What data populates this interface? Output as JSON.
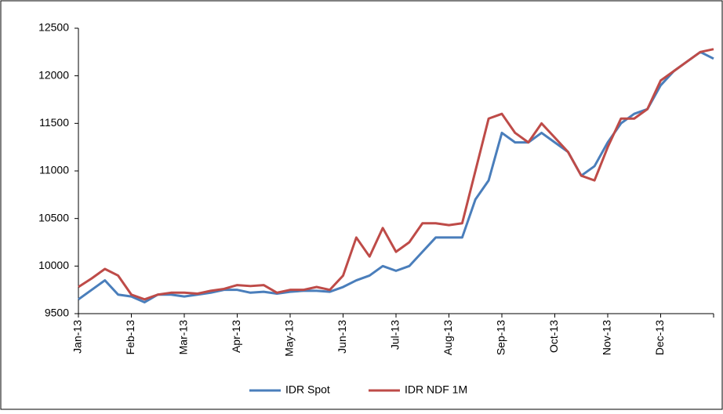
{
  "chart_data": {
    "type": "line",
    "categories": [
      "Jan-13",
      null,
      null,
      null,
      "Feb-13",
      null,
      null,
      null,
      "Mar-13",
      null,
      null,
      null,
      "Apr-13",
      null,
      null,
      null,
      "May-13",
      null,
      null,
      null,
      "Jun-13",
      null,
      null,
      null,
      "Jul-13",
      null,
      null,
      null,
      "Aug-13",
      null,
      null,
      null,
      "Sep-13",
      null,
      null,
      null,
      "Oct-13",
      null,
      null,
      null,
      "Nov-13",
      null,
      null,
      null,
      "Dec-13",
      null,
      null,
      null,
      null
    ],
    "series": [
      {
        "name": "IDR Spot",
        "color": "#4a7ebb",
        "values": [
          9650,
          9750,
          9850,
          9700,
          9680,
          9620,
          9700,
          9700,
          9680,
          9700,
          9720,
          9750,
          9750,
          9720,
          9730,
          9710,
          9730,
          9740,
          9740,
          9730,
          9780,
          9850,
          9900,
          10000,
          9950,
          10000,
          10150,
          10300,
          10300,
          10300,
          10700,
          10900,
          11400,
          11300,
          11300,
          11400,
          11300,
          11200,
          10950,
          11050,
          11300,
          11500,
          11600,
          11650,
          11900,
          12050,
          12150,
          12250,
          12180
        ]
      },
      {
        "name": "IDR NDF 1M",
        "color": "#be4b48",
        "values": [
          9780,
          9870,
          9970,
          9900,
          9700,
          9650,
          9700,
          9720,
          9720,
          9710,
          9740,
          9760,
          9800,
          9790,
          9800,
          9720,
          9750,
          9750,
          9780,
          9750,
          9900,
          10300,
          10100,
          10400,
          10150,
          10250,
          10450,
          10450,
          10430,
          10450,
          11000,
          11550,
          11600,
          11400,
          11300,
          11500,
          11350,
          11200,
          10950,
          10900,
          11250,
          11550,
          11550,
          11650,
          11950,
          12050,
          12150,
          12250,
          12280
        ]
      }
    ],
    "ylim": [
      9500,
      12500
    ],
    "yticks": [
      9500,
      10000,
      10500,
      11000,
      11500,
      12000,
      12500
    ],
    "grid": false,
    "legend": "bottom"
  }
}
